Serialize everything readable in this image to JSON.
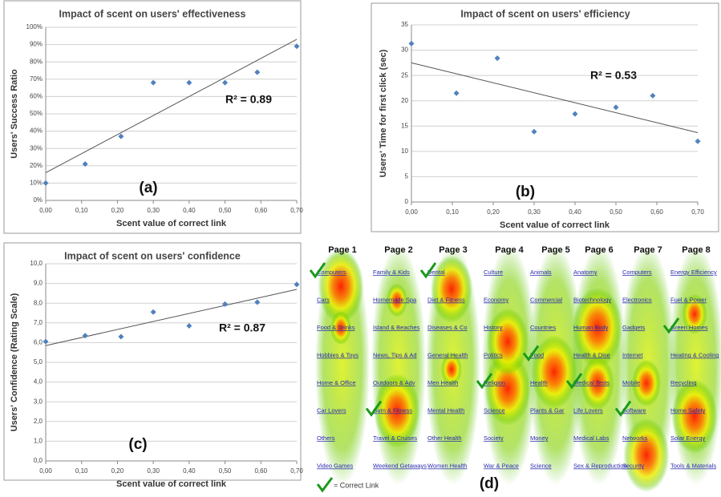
{
  "chart_data": [
    {
      "type": "scatter",
      "title": "Impact of scent on users' effectiveness",
      "x_label": "Scent value of correct link",
      "y_label": "Users' Success Ratio",
      "annotation": "R² = 0.89",
      "panel_label": "(a)",
      "color": "#4f81bd",
      "grid": true,
      "x": [
        0,
        0.11,
        0.21,
        0.3,
        0.4,
        0.5,
        0.59,
        0.7
      ],
      "values": [
        10,
        21,
        37,
        68,
        68,
        68,
        74,
        89
      ],
      "trendline": {
        "x": [
          0,
          0.7
        ],
        "values": [
          16,
          93
        ]
      },
      "xlim": [
        0,
        0.7
      ],
      "ylim": [
        0,
        100
      ],
      "xticks": [
        {
          "value": 0,
          "label": "0,00"
        },
        {
          "value": 0.1,
          "label": "0,10"
        },
        {
          "value": 0.2,
          "label": "0,20"
        },
        {
          "value": 0.3,
          "label": "0,30"
        },
        {
          "value": 0.4,
          "label": "0,40"
        },
        {
          "value": 0.5,
          "label": "0,50"
        },
        {
          "value": 0.6,
          "label": "0,60"
        },
        {
          "value": 0.7,
          "label": "0,70"
        }
      ],
      "yticks": [
        {
          "value": 0,
          "label": "0%"
        },
        {
          "value": 10,
          "label": "10%"
        },
        {
          "value": 20,
          "label": "20%"
        },
        {
          "value": 30,
          "label": "30%"
        },
        {
          "value": 40,
          "label": "40%"
        },
        {
          "value": 50,
          "label": "50%"
        },
        {
          "value": 60,
          "label": "60%"
        },
        {
          "value": 70,
          "label": "70%"
        },
        {
          "value": 80,
          "label": "80%"
        },
        {
          "value": 90,
          "label": "90%"
        },
        {
          "value": 100,
          "label": "100%"
        }
      ]
    },
    {
      "type": "scatter",
      "title": "Impact of scent on users' efficiency",
      "x_label": "Scent value of correct link",
      "y_label": "Users' Time for first click (sec)",
      "annotation": "R² = 0.53",
      "panel_label": "(b)",
      "color": "#4f81bd",
      "grid": true,
      "x": [
        0,
        0.11,
        0.21,
        0.3,
        0.4,
        0.5,
        0.59,
        0.7
      ],
      "values": [
        31.3,
        21.5,
        28.4,
        13.9,
        17.4,
        18.7,
        21.0,
        12.0
      ],
      "trendline": {
        "x": [
          0,
          0.7
        ],
        "values": [
          27.5,
          13.7
        ]
      },
      "xlim": [
        0,
        0.7
      ],
      "ylim": [
        0,
        35
      ],
      "xticks": [
        {
          "value": 0,
          "label": "0,00"
        },
        {
          "value": 0.1,
          "label": "0,10"
        },
        {
          "value": 0.2,
          "label": "0,20"
        },
        {
          "value": 0.3,
          "label": "0,30"
        },
        {
          "value": 0.4,
          "label": "0,40"
        },
        {
          "value": 0.5,
          "label": "0,50"
        },
        {
          "value": 0.6,
          "label": "0,60"
        },
        {
          "value": 0.7,
          "label": "0,70"
        }
      ],
      "yticks": [
        0,
        5,
        10,
        15,
        20,
        25,
        30,
        35
      ]
    },
    {
      "type": "scatter",
      "title": "Impact of scent on users' confidence",
      "x_label": "Scent value of correct link",
      "y_label": "Users' Confidence  (Rating  Scale)",
      "annotation": "R² = 0.87",
      "panel_label": "(c)",
      "color": "#4f81bd",
      "grid": true,
      "x": [
        0,
        0.11,
        0.21,
        0.3,
        0.4,
        0.5,
        0.59,
        0.7
      ],
      "values": [
        6.05,
        6.35,
        6.3,
        7.55,
        6.85,
        7.95,
        8.05,
        8.95
      ],
      "trendline": {
        "x": [
          0,
          0.7
        ],
        "values": [
          5.85,
          8.7
        ]
      },
      "xlim": [
        0,
        0.7
      ],
      "ylim": [
        0,
        10
      ],
      "xticks": [
        {
          "value": 0,
          "label": "0,00"
        },
        {
          "value": 0.1,
          "label": "0,10"
        },
        {
          "value": 0.2,
          "label": "0,20"
        },
        {
          "value": 0.3,
          "label": "0,30"
        },
        {
          "value": 0.4,
          "label": "0,40"
        },
        {
          "value": 0.5,
          "label": "0,50"
        },
        {
          "value": 0.6,
          "label": "0,60"
        },
        {
          "value": 0.7,
          "label": "0,70"
        }
      ],
      "yticks": [
        {
          "value": 0,
          "label": "0,0"
        },
        {
          "value": 1,
          "label": "1,0"
        },
        {
          "value": 2,
          "label": "2,0"
        },
        {
          "value": 3,
          "label": "3,0"
        },
        {
          "value": 4,
          "label": "4,0"
        },
        {
          "value": 5,
          "label": "5,0"
        },
        {
          "value": 6,
          "label": "6,0"
        },
        {
          "value": 7,
          "label": "7,0"
        },
        {
          "value": 8,
          "label": "8,0"
        },
        {
          "value": 9,
          "label": "9,0"
        },
        {
          "value": 10,
          "label": "10,0"
        }
      ]
    }
  ],
  "heatmap": {
    "panel_label": "(d)",
    "legend": "= Correct Link",
    "pages": [
      {
        "label": "Page 1",
        "correct": 0,
        "links": [
          "Computers",
          "Cars",
          "Food & Drinks",
          "Hobbies & Toys",
          "Home & Office",
          "Car Lovers",
          "Others",
          "Video Games"
        ]
      },
      {
        "label": "Page 2",
        "correct": 5,
        "links": [
          "Family & Kids",
          "Homemade Spa",
          "Island & Beaches",
          "News, Tips & Ad",
          "Outdoors & Adv",
          "Gym & Fitness",
          "Travel & Cruises",
          "Weekend Getaways"
        ]
      },
      {
        "label": "Page 3",
        "correct": 0,
        "links": [
          "Dental",
          "Diet & Fitness",
          "Diseases & Co",
          "General Health",
          "Men Health",
          "Mental Health",
          "Other Health",
          "Women Health"
        ]
      },
      {
        "label": "Page 4",
        "correct": 4,
        "links": [
          "Culture",
          "Economy",
          "History",
          "Politics",
          "Religion",
          "Science",
          "Society",
          "War & Peace"
        ]
      },
      {
        "label": "Page 5",
        "correct": 3,
        "links": [
          "Animals",
          "Commercial",
          "Countries",
          "Food",
          "Health",
          "Plants & Gar",
          "Money",
          "Science"
        ]
      },
      {
        "label": "Page 6",
        "correct": 4,
        "links": [
          "Anatomy",
          "Biotechnology",
          "Human Body",
          "Health & Dise",
          "Medical Tests",
          "Life Lovers",
          "Medical Labs",
          "Sex & Reproduction"
        ]
      },
      {
        "label": "Page 7",
        "correct": 5,
        "links": [
          "Computers",
          "Electronics",
          "Gadgets",
          "Internet",
          "Mobile",
          "Software",
          "Networks",
          "Security"
        ]
      },
      {
        "label": "Page 8",
        "correct": 2,
        "links": [
          "Energy Efficiency",
          "Fuel & Power",
          "Green Homes",
          "Heating & Cooling",
          "Recycling",
          "Home Safety",
          "Solar Energy",
          "Tools & Materials"
        ]
      }
    ]
  }
}
